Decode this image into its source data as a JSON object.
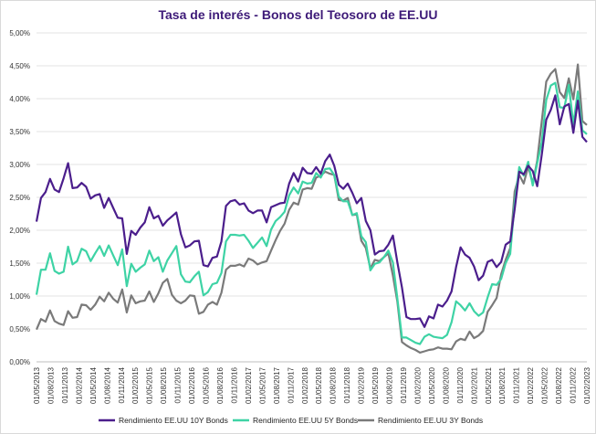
{
  "chart_data": {
    "type": "line",
    "title": "Tasa de interés - Bonos del Teosoro de EE.UU",
    "xlabel": "",
    "ylabel": "",
    "ylim": [
      0,
      5
    ],
    "y_ticks": [
      "0,00%",
      "0,50%",
      "1,00%",
      "1,50%",
      "2,00%",
      "2,50%",
      "3,00%",
      "3,50%",
      "4,00%",
      "4,50%",
      "5,00%"
    ],
    "x_ticks": [
      "01/05/2013",
      "01/08/2013",
      "01/11/2013",
      "01/02/2014",
      "01/05/2014",
      "01/08/2014",
      "01/11/2014",
      "01/02/2015",
      "01/05/2015",
      "01/08/2015",
      "01/11/2015",
      "01/02/2016",
      "01/05/2016",
      "01/08/2016",
      "01/11/2016",
      "01/02/2017",
      "01/05/2017",
      "01/08/2017",
      "01/11/2017",
      "01/02/2018",
      "01/05/2018",
      "01/08/2018",
      "01/11/2018",
      "01/02/2019",
      "01/05/2019",
      "01/08/2019",
      "01/11/2019",
      "01/02/2020",
      "01/05/2020",
      "01/08/2020",
      "01/11/2020",
      "01/02/2021",
      "01/05/2021",
      "01/08/2021",
      "01/11/2021",
      "01/02/2022",
      "01/05/2022",
      "01/08/2022",
      "01/11/2022",
      "01/02/2023"
    ],
    "grid": true,
    "legend_position": "bottom",
    "series": [
      {
        "name": "Rendimiento EE.UU 10Y Bonds",
        "color": "#4b1e8c",
        "values": [
          2.13,
          2.49,
          2.58,
          2.78,
          2.62,
          2.58,
          2.79,
          3.02,
          2.64,
          2.65,
          2.72,
          2.66,
          2.48,
          2.53,
          2.55,
          2.34,
          2.49,
          2.34,
          2.19,
          2.18,
          1.64,
          1.99,
          1.93,
          2.04,
          2.12,
          2.35,
          2.18,
          2.22,
          2.07,
          2.15,
          2.21,
          2.27,
          1.94,
          1.74,
          1.77,
          1.83,
          1.84,
          1.47,
          1.45,
          1.58,
          1.6,
          1.83,
          2.37,
          2.44,
          2.46,
          2.39,
          2.41,
          2.3,
          2.26,
          2.3,
          2.3,
          2.12,
          2.35,
          2.38,
          2.41,
          2.42,
          2.71,
          2.87,
          2.74,
          2.95,
          2.87,
          2.86,
          2.96,
          2.86,
          3.05,
          3.15,
          2.98,
          2.69,
          2.63,
          2.71,
          2.57,
          2.41,
          2.49,
          2.14,
          2.0,
          1.63,
          1.68,
          1.69,
          1.78,
          1.92,
          1.51,
          1.13,
          0.68,
          0.65,
          0.65,
          0.66,
          0.53,
          0.69,
          0.66,
          0.87,
          0.84,
          0.93,
          1.07,
          1.44,
          1.74,
          1.63,
          1.58,
          1.45,
          1.24,
          1.31,
          1.52,
          1.55,
          1.44,
          1.52,
          1.78,
          1.83,
          2.32,
          2.89,
          2.85,
          2.98,
          2.9,
          2.67,
          3.15,
          3.68,
          3.83,
          4.05,
          3.61,
          3.88,
          3.92,
          3.48,
          3.97,
          3.42,
          3.34
        ]
      },
      {
        "name": "Rendimiento EE.UU 5Y Bonds",
        "color": "#3ed3a5",
        "values": [
          1.02,
          1.4,
          1.4,
          1.65,
          1.38,
          1.34,
          1.37,
          1.75,
          1.48,
          1.53,
          1.72,
          1.68,
          1.53,
          1.65,
          1.76,
          1.61,
          1.77,
          1.62,
          1.47,
          1.71,
          1.15,
          1.49,
          1.37,
          1.43,
          1.48,
          1.69,
          1.53,
          1.59,
          1.37,
          1.54,
          1.65,
          1.76,
          1.33,
          1.22,
          1.21,
          1.3,
          1.37,
          1.01,
          1.06,
          1.18,
          1.2,
          1.35,
          1.83,
          1.93,
          1.93,
          1.92,
          1.93,
          1.84,
          1.73,
          1.81,
          1.89,
          1.76,
          2.01,
          2.14,
          2.2,
          2.28,
          2.53,
          2.65,
          2.56,
          2.74,
          2.71,
          2.72,
          2.87,
          2.8,
          2.93,
          2.94,
          2.84,
          2.51,
          2.44,
          2.44,
          2.23,
          2.26,
          1.91,
          1.82,
          1.39,
          1.49,
          1.51,
          1.59,
          1.69,
          1.51,
          0.96,
          0.37,
          0.37,
          0.33,
          0.29,
          0.27,
          0.38,
          0.42,
          0.38,
          0.37,
          0.36,
          0.41,
          0.6,
          0.92,
          0.86,
          0.78,
          0.89,
          0.77,
          0.7,
          0.75,
          0.98,
          1.18,
          1.17,
          1.26,
          1.5,
          1.64,
          2.42,
          2.96,
          2.83,
          3.04,
          2.68,
          3.02,
          3.34,
          3.98,
          4.2,
          4.24,
          3.87,
          3.86,
          4.21,
          3.61,
          4.11,
          3.52,
          3.46
        ]
      },
      {
        "name": "Rendimiento EE.UU 3Y Bonds",
        "color": "#7a7a7a",
        "values": [
          0.49,
          0.65,
          0.61,
          0.78,
          0.62,
          0.58,
          0.56,
          0.77,
          0.67,
          0.68,
          0.87,
          0.86,
          0.79,
          0.87,
          0.99,
          0.92,
          1.05,
          0.96,
          0.9,
          1.1,
          0.75,
          1.01,
          0.89,
          0.92,
          0.93,
          1.07,
          0.91,
          1.04,
          1.2,
          1.26,
          1.02,
          0.93,
          0.89,
          0.93,
          1.01,
          1.0,
          0.73,
          0.76,
          0.87,
          0.91,
          0.87,
          1.05,
          1.4,
          1.46,
          1.46,
          1.48,
          1.45,
          1.57,
          1.54,
          1.48,
          1.51,
          1.53,
          1.69,
          1.85,
          1.99,
          2.1,
          2.31,
          2.42,
          2.39,
          2.62,
          2.64,
          2.63,
          2.8,
          2.83,
          2.89,
          2.86,
          2.84,
          2.46,
          2.45,
          2.49,
          2.23,
          2.24,
          1.84,
          1.73,
          1.42,
          1.55,
          1.53,
          1.59,
          1.65,
          1.31,
          0.91,
          0.3,
          0.25,
          0.21,
          0.18,
          0.14,
          0.16,
          0.18,
          0.19,
          0.22,
          0.2,
          0.2,
          0.19,
          0.31,
          0.35,
          0.33,
          0.46,
          0.36,
          0.4,
          0.47,
          0.76,
          0.86,
          0.97,
          1.33,
          1.55,
          1.73,
          2.59,
          2.84,
          2.71,
          2.97,
          2.71,
          3.06,
          3.66,
          4.26,
          4.38,
          4.45,
          4.1,
          4.01,
          4.31,
          3.99,
          4.52,
          3.66,
          3.6
        ]
      }
    ]
  }
}
